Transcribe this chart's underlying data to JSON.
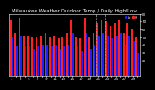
{
  "title": "Milwaukee Weather Outdoor Temp / Daily High/Low",
  "high_color": "#ff2020",
  "low_color": "#2020ff",
  "background_color": "#000000",
  "text_color": "#ffffff",
  "grid_color": "#444444",
  "highs": [
    72,
    55,
    75,
    52,
    52,
    50,
    50,
    52,
    55,
    50,
    52,
    48,
    50,
    55,
    72,
    50,
    48,
    75,
    50,
    55,
    68,
    72,
    70,
    65,
    68,
    72,
    55,
    68,
    60,
    50
  ],
  "lows": [
    50,
    38,
    52,
    38,
    38,
    35,
    38,
    40,
    40,
    38,
    40,
    35,
    38,
    40,
    55,
    38,
    32,
    55,
    35,
    40,
    52,
    55,
    52,
    48,
    52,
    55,
    40,
    52,
    45,
    30
  ],
  "xlabels": [
    "1",
    "",
    "3",
    "",
    "5",
    "",
    "7",
    "",
    "9",
    "",
    "11",
    "",
    "13",
    "",
    "15",
    "",
    "17",
    "",
    "19",
    "",
    "21",
    "",
    "23",
    "",
    "25",
    "",
    "27",
    "",
    "29",
    ""
  ],
  "ylim": [
    0,
    80
  ],
  "yticks": [
    20,
    30,
    40,
    50,
    60,
    70,
    80
  ],
  "vline_positions": [
    19.5,
    21.5
  ],
  "title_fontsize": 4.0,
  "tick_fontsize": 3.0,
  "bar_width": 0.4
}
